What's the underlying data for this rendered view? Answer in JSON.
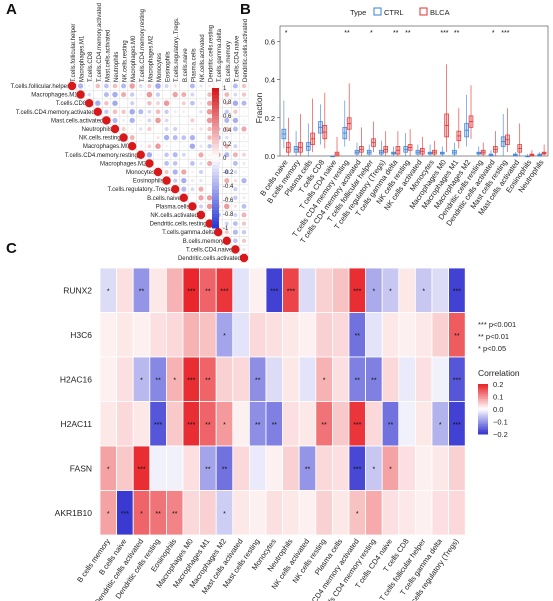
{
  "panel_letters": [
    "A",
    "B",
    "C"
  ],
  "chart_data": [
    {
      "panel": "A",
      "type": "heatmap",
      "subtype": "correlation-upper-triangle",
      "labels": [
        "T.cells.follicular.helper",
        "Macrophages.M1",
        "T.cells.CD8",
        "T.cells.CD4.memory.activated",
        "Mast.cells.activated",
        "Neutrophils",
        "NK.cells.resting",
        "Macrophages.M0",
        "T.cells.CD4.memory.resting",
        "Macrophages.M2",
        "Monocytes",
        "Eosinophils",
        "T.cells.regulatory..Tregs.",
        "B.cells.naive",
        "Plasma.cells",
        "NK.cells.activated",
        "Dendritic.cells.resting",
        "T.cells.gamma.delta",
        "B.cells.memory",
        "T.cells.CD4.naive",
        "Dendritic.cells.activated"
      ],
      "legend_ticks": [
        1,
        0.8,
        0.6,
        0.4,
        0.2,
        0,
        -0.2,
        -0.4,
        -0.6,
        -0.8,
        -1
      ],
      "colors": {
        "positive": "#d7191c",
        "negative": "#2b3bd6",
        "zero": "#ffffff"
      }
    },
    {
      "panel": "B",
      "type": "box",
      "ylabel": "Fraction",
      "yticks": [
        "0.0",
        "0.2",
        "0.4",
        "0.6"
      ],
      "ylim": [
        0,
        0.68
      ],
      "legend_title": "Type",
      "series": [
        {
          "name": "CTRL",
          "color": "#3a7fd5"
        },
        {
          "name": "BLCA",
          "color": "#e0302f"
        }
      ],
      "categories": [
        "B cells naive",
        "B cells memory",
        "Plasma cells",
        "T cells CD8",
        "T cells CD4 naive",
        "T cells CD4 memory resting",
        "T cells CD4 memory activated",
        "T cells follicular helper",
        "T cells regulatory (Tregs)",
        "T cells gamma delta",
        "NK cells resting",
        "NK cells activated",
        "Monocytes",
        "Macrophages M0",
        "Macrophages M1",
        "Macrophages M2",
        "Dendritic cells resting",
        "Dendritic cells activated",
        "Mast cells resting",
        "Mast cells activated",
        "Eosinophils",
        "Neutrophils"
      ],
      "significance": [
        "*",
        "",
        "",
        "",
        "",
        "**",
        "",
        "*",
        "",
        "**",
        "**",
        "",
        "",
        "***",
        "**",
        "",
        "",
        "*",
        "***",
        "",
        "",
        ""
      ],
      "ctrl_stats": [
        [
          0.04,
          0.09,
          0.14,
          0.29
        ],
        [
          0.0,
          0.02,
          0.05,
          0.13
        ],
        [
          0.0,
          0.03,
          0.07,
          0.17
        ],
        [
          0.06,
          0.12,
          0.18,
          0.27
        ],
        [
          0.0,
          0.0,
          0.0,
          0.0
        ],
        [
          0.05,
          0.09,
          0.15,
          0.29
        ],
        [
          0.0,
          0.01,
          0.03,
          0.07
        ],
        [
          0.0,
          0.01,
          0.03,
          0.06
        ],
        [
          0.0,
          0.01,
          0.03,
          0.08
        ],
        [
          0.0,
          0.01,
          0.02,
          0.05
        ],
        [
          0.0,
          0.02,
          0.05,
          0.12
        ],
        [
          0.0,
          0.01,
          0.03,
          0.06
        ],
        [
          0.0,
          0.01,
          0.02,
          0.06
        ],
        [
          0.0,
          0.01,
          0.02,
          0.05
        ],
        [
          0.0,
          0.01,
          0.03,
          0.07
        ],
        [
          0.05,
          0.1,
          0.17,
          0.32
        ],
        [
          0.0,
          0.01,
          0.02,
          0.05
        ],
        [
          0.0,
          0.0,
          0.01,
          0.03
        ],
        [
          0.0,
          0.05,
          0.1,
          0.22
        ],
        [
          0.0,
          0.0,
          0.01,
          0.02
        ],
        [
          0.0,
          0.0,
          0.0,
          0.01
        ],
        [
          0.0,
          0.0,
          0.01,
          0.02
        ]
      ],
      "blca_stats": [
        [
          0.0,
          0.02,
          0.07,
          0.2
        ],
        [
          0.0,
          0.02,
          0.07,
          0.22
        ],
        [
          0.02,
          0.06,
          0.12,
          0.3
        ],
        [
          0.04,
          0.09,
          0.16,
          0.33
        ],
        [
          0.0,
          0.0,
          0.02,
          0.1
        ],
        [
          0.08,
          0.14,
          0.2,
          0.38
        ],
        [
          0.0,
          0.02,
          0.05,
          0.15
        ],
        [
          0.02,
          0.05,
          0.09,
          0.18
        ],
        [
          0.0,
          0.02,
          0.05,
          0.13
        ],
        [
          0.0,
          0.01,
          0.05,
          0.13
        ],
        [
          0.0,
          0.03,
          0.06,
          0.14
        ],
        [
          0.0,
          0.01,
          0.04,
          0.1
        ],
        [
          0.0,
          0.01,
          0.03,
          0.08
        ],
        [
          0.02,
          0.1,
          0.22,
          0.48
        ],
        [
          0.04,
          0.08,
          0.13,
          0.25
        ],
        [
          0.09,
          0.15,
          0.21,
          0.37
        ],
        [
          0.0,
          0.01,
          0.03,
          0.07
        ],
        [
          0.0,
          0.02,
          0.05,
          0.13
        ],
        [
          0.02,
          0.06,
          0.11,
          0.25
        ],
        [
          0.0,
          0.02,
          0.06,
          0.17
        ],
        [
          0.0,
          0.0,
          0.01,
          0.03
        ],
        [
          0.0,
          0.01,
          0.02,
          0.06
        ]
      ]
    },
    {
      "panel": "C",
      "type": "heatmap",
      "rows": [
        "RUNX2",
        "H3C6",
        "H2AC16",
        "H2AC11",
        "FASN",
        "AKR1B10"
      ],
      "columns": [
        "B cells memory",
        "B cells naive",
        "Dendritic cells activated",
        "Dendritic cells resting",
        "Eosinophils",
        "Macrophages M0",
        "Macrophages M1",
        "Macrophages M2",
        "Mast cells activated",
        "Mast cells resting",
        "Monocytes",
        "Neutrophils",
        "NK cells activated",
        "NK cells resting",
        "Plasma cells",
        "T cells CD4 memory activated",
        "T cells CD4 memory resting",
        "T cells CD4 naive",
        "T cells CD8",
        "T cells follicular helper",
        "T cells gamma delta",
        "T cells regulatory (Tregs)"
      ],
      "values": [
        [
          -0.05,
          0.04,
          -0.15,
          0.03,
          0.1,
          0.28,
          0.2,
          0.26,
          -0.04,
          0.02,
          -0.27,
          0.24,
          -0.05,
          0.06,
          0.08,
          0.27,
          -0.12,
          -0.08,
          0.03,
          -0.08,
          -0.05,
          -0.27
        ],
        [
          0.02,
          0.03,
          0.02,
          0.04,
          0.05,
          0.1,
          0.08,
          -0.13,
          -0.04,
          0.05,
          0.04,
          0.03,
          0.02,
          0.06,
          0.05,
          -0.2,
          -0.04,
          0.03,
          0.02,
          0.03,
          0.06,
          0.21
        ],
        [
          0.02,
          0.04,
          -0.1,
          -0.17,
          0.1,
          0.27,
          0.2,
          0.06,
          0.05,
          -0.16,
          -0.05,
          0.03,
          -0.04,
          0.1,
          0.04,
          -0.18,
          -0.18,
          0.05,
          -0.03,
          0.04,
          -0.02,
          -0.24
        ],
        [
          0.03,
          0.05,
          0.03,
          -0.24,
          0.07,
          0.27,
          0.2,
          0.13,
          0.02,
          -0.16,
          -0.18,
          0.04,
          0.03,
          0.18,
          0.07,
          0.26,
          0.05,
          -0.2,
          -0.02,
          0.03,
          -0.11,
          -0.27
        ],
        [
          0.12,
          0.07,
          0.27,
          -0.02,
          -0.02,
          0.04,
          -0.13,
          -0.2,
          0.05,
          -0.03,
          0.02,
          0.06,
          -0.15,
          0.05,
          0.04,
          -0.26,
          -0.08,
          0.12,
          0.04,
          0.02,
          0.03,
          0.06
        ],
        [
          0.12,
          -0.28,
          0.2,
          0.18,
          0.16,
          0.05,
          0.06,
          -0.07,
          0.03,
          0.02,
          0.04,
          0.03,
          0.02,
          0.06,
          0.03,
          0.08,
          0.11,
          0.04,
          0.03,
          0.02,
          0.04,
          0.05
        ]
      ],
      "stars": [
        [
          "*",
          "",
          "**",
          "",
          "",
          "***",
          "**",
          "***",
          "",
          "",
          "***",
          "***",
          "",
          "",
          "",
          "***",
          "*",
          "*",
          "",
          "*",
          "",
          "***"
        ],
        [
          "",
          "",
          "",
          "",
          "",
          "",
          "",
          "*",
          "",
          "",
          "",
          "",
          "",
          "",
          "",
          "**",
          "",
          "",
          "",
          "",
          "",
          "**"
        ],
        [
          "",
          "",
          "*",
          "**",
          "*",
          "***",
          "**",
          "",
          "",
          "**",
          "",
          "",
          "",
          "*",
          "",
          "**",
          "**",
          "",
          "",
          "",
          "",
          "***"
        ],
        [
          "",
          "",
          "",
          "***",
          "",
          "***",
          "**",
          "*",
          "",
          "**",
          "**",
          "",
          "",
          "**",
          "",
          "***",
          "",
          "**",
          "",
          "",
          "*",
          "***"
        ],
        [
          "*",
          "",
          "***",
          "",
          "",
          "",
          "**",
          "**",
          "",
          "",
          "",
          "",
          "**",
          "",
          "",
          "***",
          "*",
          "*",
          "",
          "",
          "",
          ""
        ],
        [
          "*",
          "***",
          "*",
          "**",
          "**",
          "",
          "",
          "*",
          "",
          "",
          "",
          "",
          "",
          "",
          "",
          "*",
          "",
          "",
          "",
          "",
          "",
          ""
        ]
      ],
      "pvalue_legend": [
        "***  p<0.001",
        "**  p<0.01",
        "*  p<0.05"
      ],
      "color_legend_title": "Correlation",
      "color_legend_ticks": [
        "0.2",
        "0.1",
        "0.0",
        "−0.1",
        "−0.2"
      ],
      "colors": {
        "high": "#e8262b",
        "mid": "#ffffff",
        "low": "#3a3ad2"
      }
    }
  ]
}
